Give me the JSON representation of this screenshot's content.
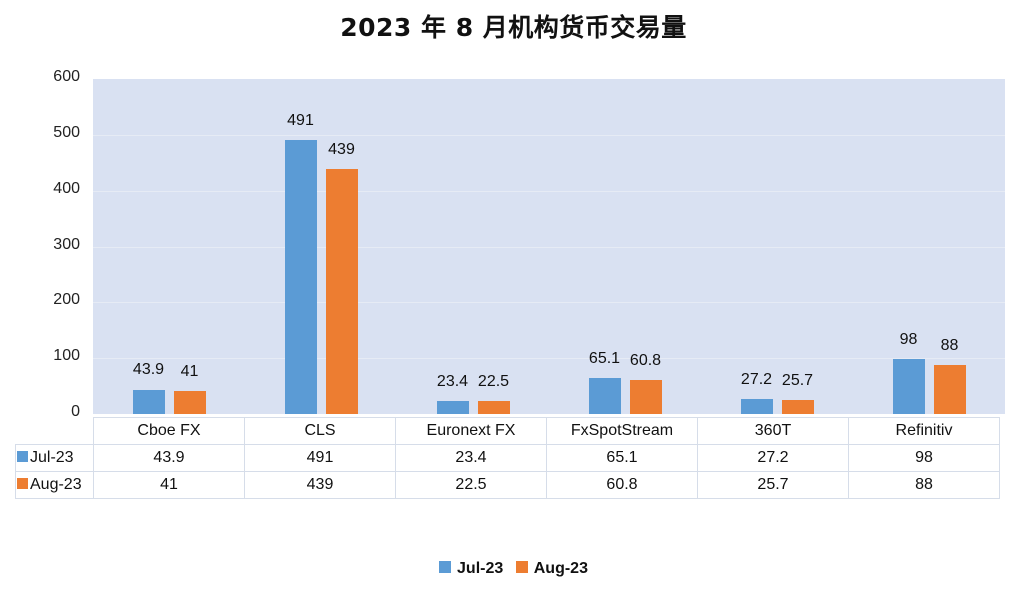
{
  "title": "2023 年 8 月机构货币交易量",
  "colors": {
    "Jul-23": "#5b9bd5",
    "Aug-23": "#ed7d31",
    "plot_bg": "#d9e1f2"
  },
  "y_ticks": [
    "0",
    "100",
    "200",
    "300",
    "400",
    "500",
    "600"
  ],
  "categories": [
    "Cboe FX",
    "CLS",
    "Euronext FX",
    "FxSpotStream",
    "360T",
    "Refinitiv"
  ],
  "table": {
    "rows": [
      {
        "label": "Jul-23",
        "values": [
          "43.9",
          "491",
          "23.4",
          "65.1",
          "27.2",
          "98"
        ]
      },
      {
        "label": "Aug-23",
        "values": [
          "41",
          "439",
          "22.5",
          "60.8",
          "25.7",
          "88"
        ]
      }
    ]
  },
  "legend": {
    "items": [
      "Jul-23",
      "Aug-23"
    ]
  },
  "chart_data": {
    "type": "bar",
    "title": "2023 年 8 月机构货币交易量",
    "categories": [
      "Cboe FX",
      "CLS",
      "Euronext FX",
      "FxSpotStream",
      "360T",
      "Refinitiv"
    ],
    "series": [
      {
        "name": "Jul-23",
        "color": "#5b9bd5",
        "values": [
          43.9,
          491,
          23.4,
          65.1,
          27.2,
          98
        ]
      },
      {
        "name": "Aug-23",
        "color": "#ed7d31",
        "values": [
          41,
          439,
          22.5,
          60.8,
          25.7,
          88
        ]
      }
    ],
    "xlabel": "",
    "ylabel": "",
    "ylim": [
      0,
      600
    ],
    "yticks": [
      0,
      100,
      200,
      300,
      400,
      500,
      600
    ],
    "grid": true,
    "data_labels": true,
    "data_table": true,
    "legend_position": "bottom"
  }
}
